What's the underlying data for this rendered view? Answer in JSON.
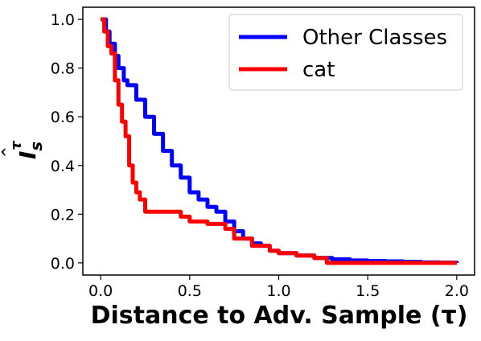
{
  "chart_data": {
    "type": "line",
    "xlabel": "Distance to Adv. Sample (τ)",
    "ylabel_base": "I",
    "ylabel_sub": "s",
    "ylabel_sup": "τ",
    "xlim": [
      -0.1,
      2.1
    ],
    "ylim": [
      -0.05,
      1.05
    ],
    "xticks": [
      0.0,
      0.5,
      1.0,
      1.5,
      2.0
    ],
    "xtick_labels": [
      "0.0",
      "0.5",
      "1.0",
      "1.5",
      "2.0"
    ],
    "yticks": [
      0.0,
      0.2,
      0.4,
      0.6,
      0.8,
      1.0
    ],
    "ytick_labels": [
      "0.0",
      "0.2",
      "0.4",
      "0.6",
      "0.8",
      "1.0"
    ],
    "grid": false,
    "legend_position": "top-right",
    "series": [
      {
        "name": "Other Classes",
        "color": "#0000ff",
        "x": [
          0.0,
          0.03,
          0.05,
          0.08,
          0.1,
          0.13,
          0.15,
          0.2,
          0.25,
          0.3,
          0.35,
          0.4,
          0.45,
          0.5,
          0.55,
          0.6,
          0.65,
          0.7,
          0.75,
          0.8,
          0.85,
          0.9,
          0.95,
          1.0,
          1.1,
          1.2,
          1.3,
          1.4,
          1.5,
          1.6,
          1.7,
          1.8,
          1.9,
          2.0
        ],
        "y": [
          1.0,
          0.95,
          0.9,
          0.85,
          0.8,
          0.75,
          0.73,
          0.67,
          0.6,
          0.53,
          0.46,
          0.4,
          0.35,
          0.29,
          0.26,
          0.23,
          0.21,
          0.17,
          0.13,
          0.1,
          0.08,
          0.07,
          0.05,
          0.04,
          0.03,
          0.02,
          0.015,
          0.01,
          0.008,
          0.006,
          0.004,
          0.002,
          0.001,
          0.0
        ]
      },
      {
        "name": "cat",
        "color": "#ff0000",
        "x": [
          0.0,
          0.02,
          0.04,
          0.06,
          0.08,
          0.1,
          0.12,
          0.14,
          0.16,
          0.18,
          0.2,
          0.22,
          0.25,
          0.35,
          0.45,
          0.5,
          0.6,
          0.7,
          0.75,
          0.85,
          0.95,
          1.0,
          1.1,
          1.2,
          1.27,
          1.4,
          1.6,
          1.8,
          2.0
        ],
        "y": [
          1.0,
          0.95,
          0.89,
          0.86,
          0.75,
          0.65,
          0.58,
          0.52,
          0.4,
          0.33,
          0.29,
          0.26,
          0.21,
          0.21,
          0.19,
          0.17,
          0.16,
          0.14,
          0.1,
          0.07,
          0.05,
          0.04,
          0.03,
          0.02,
          0.0,
          0.0,
          0.0,
          0.0,
          0.0
        ]
      }
    ]
  }
}
